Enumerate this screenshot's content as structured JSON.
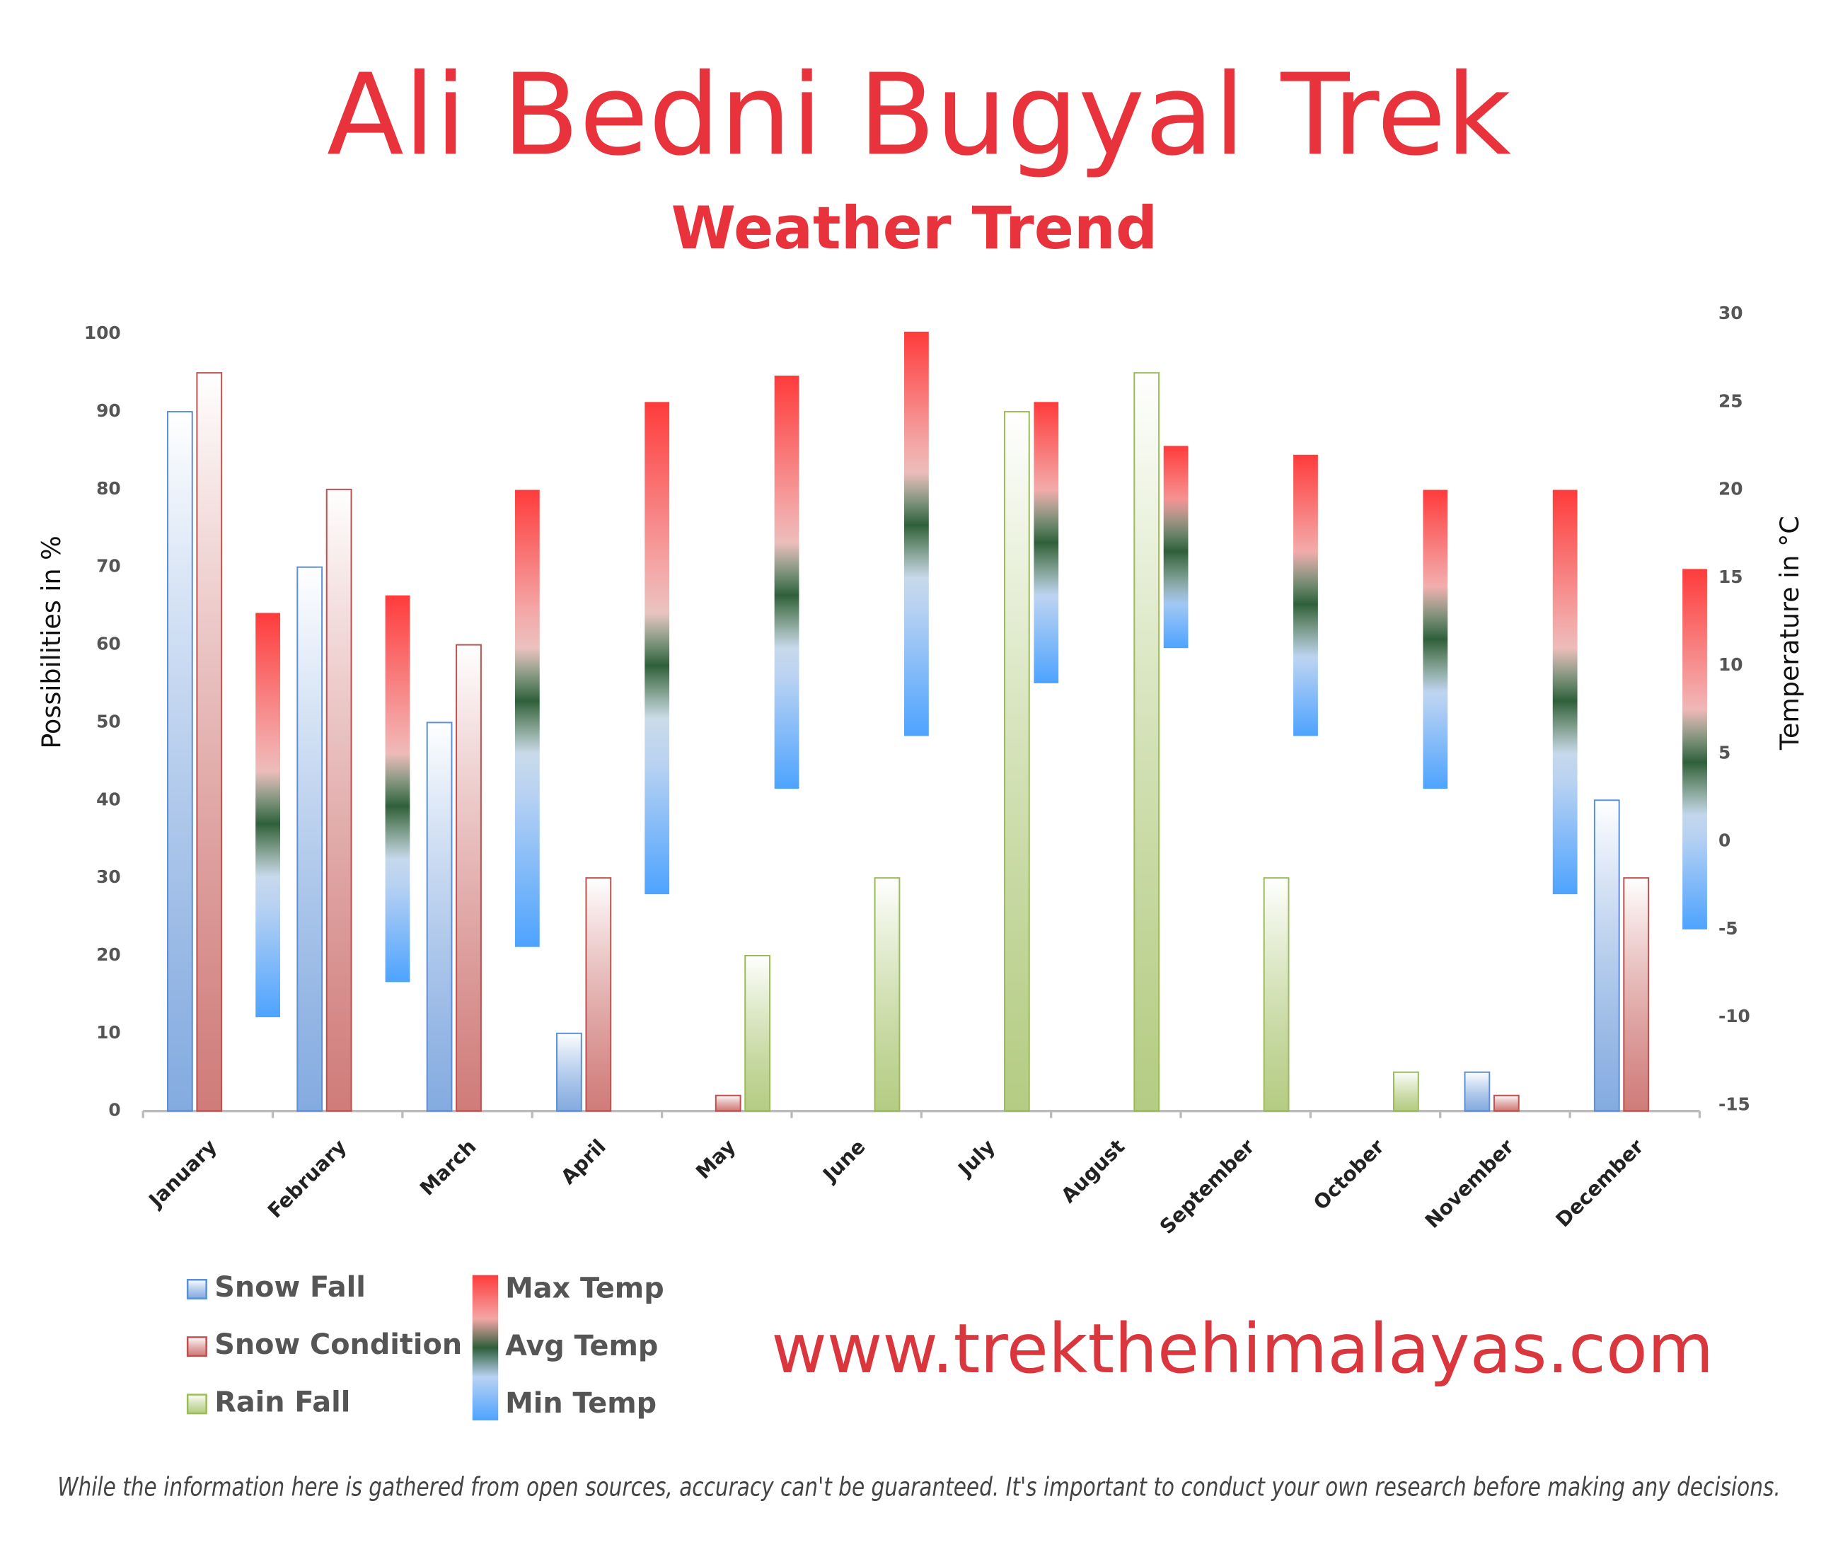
{
  "chart_data": {
    "type": "bar",
    "title": "Ali Bedni Bugyal Trek",
    "subtitle": "Weather Trend",
    "ylabel": "Possibilities in %",
    "y2label": "Temperature in °C",
    "source": "www.trekthehimalayas.com",
    "footnote": "While the information here is gathered from open sources, accuracy can't be guaranteed. It's important to conduct your own research before making any decisions.",
    "categories": [
      "January",
      "February",
      "March",
      "April",
      "May",
      "June",
      "July",
      "August",
      "September",
      "October",
      "November",
      "December"
    ],
    "ylim": [
      0,
      100
    ],
    "yticks": [
      0,
      10,
      20,
      30,
      40,
      50,
      60,
      70,
      80,
      90,
      100
    ],
    "y2lim": [
      -15,
      30
    ],
    "y2ticks": [
      -15,
      -10,
      -5,
      0,
      5,
      10,
      15,
      20,
      25,
      30
    ],
    "series": [
      {
        "name": "Snow Fall",
        "color": "#5b8fd6",
        "values": [
          90,
          70,
          50,
          10,
          0,
          0,
          0,
          0,
          0,
          0,
          5,
          40
        ]
      },
      {
        "name": "Snow Condition",
        "color": "#c0504d",
        "values": [
          95,
          80,
          60,
          30,
          2,
          0,
          0,
          0,
          0,
          0,
          2,
          30
        ]
      },
      {
        "name": "Rain Fall",
        "color": "#9bbb59",
        "values": [
          0,
          0,
          0,
          0,
          20,
          30,
          90,
          95,
          30,
          5,
          0,
          0
        ]
      },
      {
        "name": "Max Temp",
        "color": "#ff3b3b",
        "axis": "y2",
        "values": [
          13,
          14,
          20,
          25,
          26.5,
          29,
          25,
          22.5,
          22,
          20,
          20,
          15.5
        ]
      },
      {
        "name": "Avg Temp",
        "color": "#2f5f3a",
        "axis": "y2",
        "values": [
          1,
          2,
          8,
          10,
          14,
          18,
          17,
          16.5,
          13.5,
          11.5,
          8,
          4.5
        ]
      },
      {
        "name": "Min Temp",
        "color": "#4da3ff",
        "axis": "y2",
        "values": [
          -10,
          -8,
          -6,
          -3,
          3,
          6,
          9,
          11,
          6,
          3,
          -3,
          -5
        ]
      }
    ]
  }
}
